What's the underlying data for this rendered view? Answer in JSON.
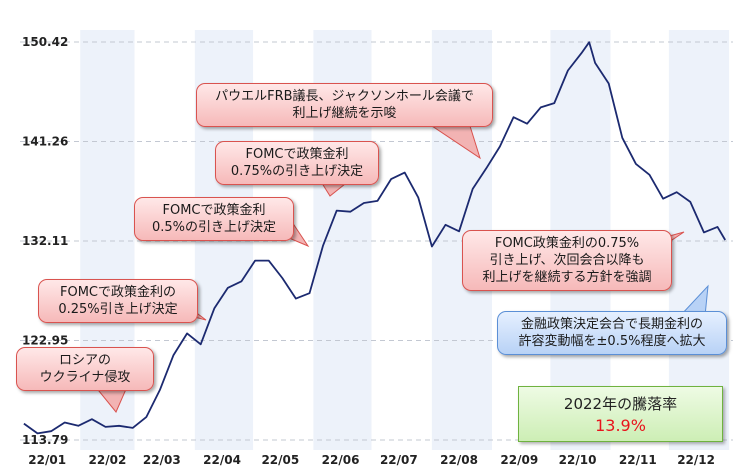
{
  "chart_data": {
    "type": "line",
    "x_tick_labels": [
      "22/01",
      "22/02",
      "22/03",
      "22/04",
      "22/05",
      "22/06",
      "22/07",
      "22/08",
      "22/09",
      "22/10",
      "22/11",
      "22/12"
    ],
    "y_tick_labels": [
      "150.42",
      "141.26",
      "132.11",
      "122.95",
      "113.79"
    ],
    "ylim": [
      113.79,
      150.42
    ],
    "grid": "horizontal dashed, alternating monthly shading",
    "line_color": "#1c2a70",
    "series": [
      {
        "x": [
          "2022-01-03",
          "2022-01-10",
          "2022-01-17",
          "2022-01-24",
          "2022-01-31",
          "2022-02-07",
          "2022-02-14",
          "2022-02-21",
          "2022-02-28",
          "2022-03-07",
          "2022-03-14",
          "2022-03-21",
          "2022-03-28",
          "2022-04-04",
          "2022-04-11",
          "2022-04-18",
          "2022-04-25",
          "2022-05-02",
          "2022-05-09",
          "2022-05-16",
          "2022-05-23",
          "2022-05-30",
          "2022-06-06",
          "2022-06-13",
          "2022-06-20",
          "2022-06-27",
          "2022-07-04",
          "2022-07-11",
          "2022-07-18",
          "2022-07-25",
          "2022-08-01",
          "2022-08-08",
          "2022-08-15",
          "2022-08-22",
          "2022-08-29",
          "2022-09-05",
          "2022-09-12",
          "2022-09-19",
          "2022-09-26",
          "2022-10-03",
          "2022-10-10",
          "2022-10-17",
          "2022-10-21",
          "2022-10-24",
          "2022-10-31",
          "2022-11-07",
          "2022-11-14",
          "2022-11-21",
          "2022-11-28",
          "2022-12-05",
          "2022-12-12",
          "2022-12-19",
          "2022-12-26",
          "2022-12-30"
        ],
        "values": [
          115.3,
          114.4,
          114.6,
          115.4,
          115.1,
          115.7,
          115.0,
          115.1,
          114.9,
          115.9,
          118.4,
          121.6,
          123.6,
          122.6,
          125.9,
          127.8,
          128.4,
          130.3,
          130.3,
          128.7,
          126.8,
          127.3,
          131.7,
          134.9,
          134.8,
          135.6,
          135.8,
          137.8,
          138.4,
          136.1,
          131.6,
          133.6,
          133.0,
          136.9,
          138.8,
          140.8,
          143.5,
          142.9,
          144.4,
          144.8,
          147.8,
          149.4,
          150.4,
          148.5,
          146.6,
          141.6,
          139.2,
          138.2,
          136.0,
          136.6,
          135.7,
          132.9,
          133.4,
          132.2
        ]
      }
    ]
  },
  "callouts": [
    {
      "id": "russia",
      "color": "#f6b9b9",
      "lines": [
        "ロシアの",
        "ウクライナ侵攻"
      ]
    },
    {
      "id": "fomc025",
      "color": "#f6b9b9",
      "lines": [
        "FOMCで政策金利の",
        "0.25%引き上げ決定"
      ]
    },
    {
      "id": "fomc05",
      "color": "#f6b9b9",
      "lines": [
        "FOMCで政策金利",
        "0.5%の引き上げ決定"
      ]
    },
    {
      "id": "fomc075",
      "color": "#f6b9b9",
      "lines": [
        "FOMCで政策金利",
        "0.75%の引き上げ決定"
      ]
    },
    {
      "id": "powell",
      "color": "#f6b9b9",
      "lines": [
        "パウエルFRB議長、ジャクソンホール会議で",
        "利上げ継続を示唆"
      ]
    },
    {
      "id": "fomc_nov",
      "color": "#f6b9b9",
      "lines": [
        "FOMC政策金利の0.75%",
        "引き上げ、次回会合以降も",
        "利上げを継続する方針を強調"
      ]
    },
    {
      "id": "boj",
      "color": "#b8d2f6",
      "lines": [
        "金融政策決定会合で長期金利の",
        "許容変動幅を±0.5%程度へ拡大"
      ]
    }
  ],
  "return_box": {
    "title": "2022年の騰落率",
    "value": "13.9%"
  }
}
